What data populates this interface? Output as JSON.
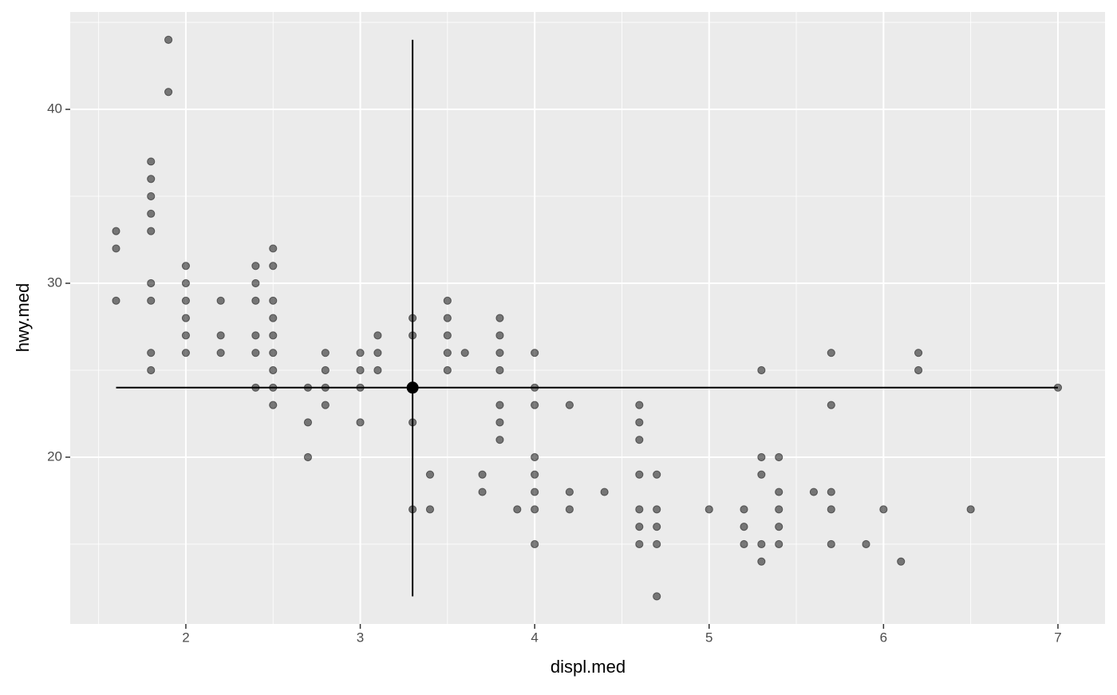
{
  "chart_data": {
    "type": "scatter",
    "x_label": "displ.med",
    "y_label": "hwy.med",
    "x": [
      1.6,
      1.6,
      1.6,
      1.8,
      1.8,
      1.8,
      1.8,
      1.8,
      1.8,
      1.8,
      1.8,
      1.8,
      1.9,
      1.9,
      2,
      2,
      2,
      2,
      2,
      2,
      2.2,
      2.2,
      2.2,
      2.4,
      2.4,
      2.4,
      2.4,
      2.4,
      2.4,
      2.5,
      2.5,
      2.5,
      2.5,
      2.5,
      2.5,
      2.5,
      2.5,
      2.5,
      2.7,
      2.7,
      2.7,
      2.8,
      2.8,
      2.8,
      2.8,
      3,
      3,
      3,
      3,
      3.1,
      3.1,
      3.1,
      3.3,
      3.3,
      3.3,
      3.3,
      3.4,
      3.4,
      3.5,
      3.5,
      3.5,
      3.5,
      3.5,
      3.6,
      3.7,
      3.7,
      3.8,
      3.8,
      3.8,
      3.8,
      3.8,
      3.8,
      3.8,
      3.9,
      4,
      4,
      4,
      4,
      4,
      4,
      4,
      4,
      4.2,
      4.2,
      4.2,
      4.4,
      4.6,
      4.6,
      4.6,
      4.6,
      4.6,
      4.6,
      4.6,
      4.7,
      4.7,
      4.7,
      4.7,
      4.7,
      5,
      5.2,
      5.2,
      5.2,
      5.3,
      5.3,
      5.3,
      5.3,
      5.3,
      5.4,
      5.4,
      5.4,
      5.4,
      5.4,
      5.6,
      5.7,
      5.7,
      5.7,
      5.7,
      5.7,
      5.9,
      6,
      6.1,
      6.2,
      6.2,
      6.5,
      7
    ],
    "values": [
      33,
      32,
      29,
      37,
      36,
      35,
      34,
      33,
      30,
      29,
      26,
      25,
      44,
      41,
      31,
      30,
      29,
      28,
      27,
      26,
      29,
      27,
      26,
      31,
      30,
      29,
      27,
      26,
      24,
      32,
      31,
      29,
      28,
      27,
      26,
      25,
      24,
      23,
      24,
      22,
      20,
      26,
      25,
      24,
      23,
      26,
      25,
      24,
      22,
      27,
      26,
      25,
      28,
      27,
      22,
      17,
      19,
      17,
      29,
      28,
      27,
      26,
      25,
      26,
      19,
      18,
      28,
      27,
      26,
      25,
      23,
      22,
      21,
      17,
      26,
      24,
      23,
      20,
      19,
      18,
      17,
      15,
      23,
      18,
      17,
      18,
      23,
      22,
      21,
      19,
      17,
      16,
      15,
      19,
      17,
      16,
      15,
      12,
      17,
      17,
      16,
      15,
      25,
      20,
      19,
      15,
      14,
      20,
      18,
      17,
      16,
      15,
      18,
      26,
      23,
      18,
      17,
      15,
      15,
      17,
      14,
      26,
      25,
      17,
      24
    ],
    "color": "#000000",
    "alpha": 0.5,
    "median": {
      "x": 3.3,
      "y": 24,
      "hline_x": [
        1.6,
        7
      ],
      "vline_y": [
        12,
        44
      ]
    },
    "xlim": [
      1.337,
      7.27
    ],
    "ylim": [
      10.41,
      45.6
    ],
    "xticks": [
      2,
      3,
      4,
      5,
      6,
      7
    ],
    "yticks": [
      20,
      30,
      40
    ],
    "xminor": [
      1.5,
      2.5,
      3.5,
      4.5,
      5.5,
      6.5
    ],
    "yminor": [
      15,
      25,
      35,
      45
    ],
    "grid": true
  }
}
